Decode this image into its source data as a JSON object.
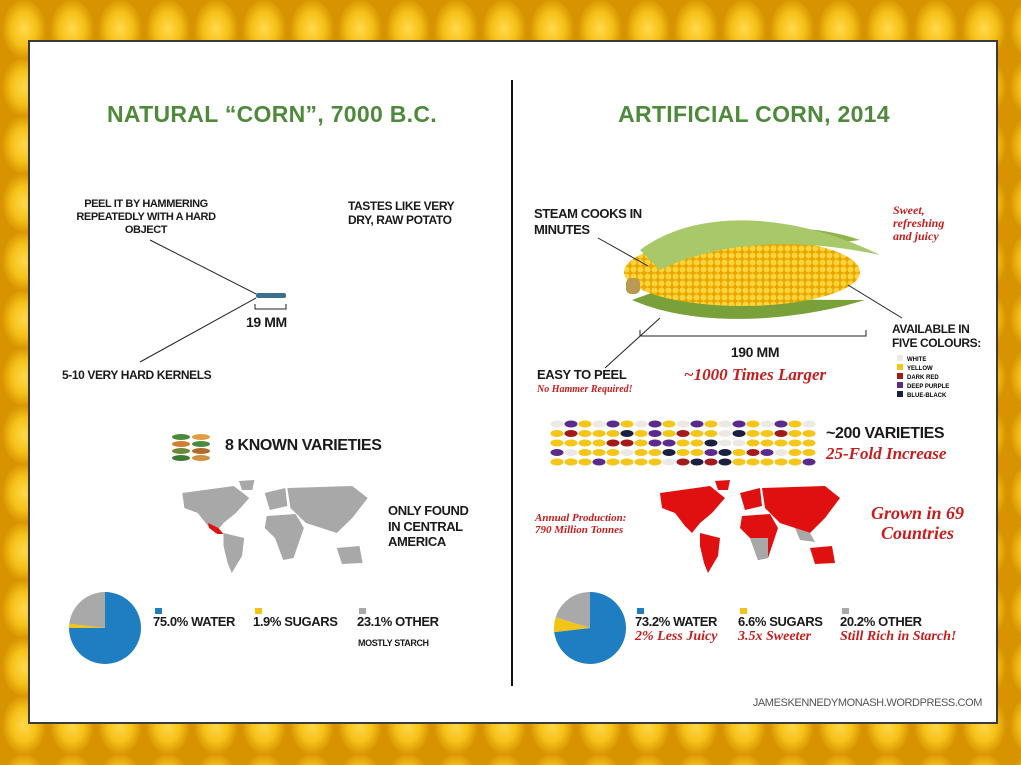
{
  "left": {
    "title": "NATURAL “CORN”, 7000 B.C.",
    "peel": "PEEL IT BY HAMMERING REPEATEDLY WITH A HARD OBJECT",
    "taste": "TASTES LIKE VERY DRY, RAW POTATO",
    "size": "19 MM",
    "kernels": "5-10 VERY HARD KERNELS",
    "varieties": "8 KNOWN VARIETIES",
    "range": "ONLY FOUND IN CENTRAL AMERICA",
    "pie": {
      "values": [
        75.0,
        1.9,
        23.1
      ],
      "colors": [
        "#1f7dc1",
        "#f2c417",
        "#a9a9a9"
      ],
      "labels": [
        "75.0% WATER",
        "1.9% SUGARS",
        "23.1% OTHER"
      ],
      "note": "MOSTLY STARCH"
    }
  },
  "right": {
    "title": "ARTIFICIAL CORN, 2014",
    "steam": "STEAM COOKS IN MINUTES",
    "sweet": "Sweet, refreshing and juicy",
    "colours_title": "AVAILABLE IN FIVE COLOURS:",
    "colours": {
      "names": [
        "WHITE",
        "YELLOW",
        "DARK RED",
        "DEEP PURPLE",
        "BLUE-BLACK"
      ],
      "colors": [
        "#ece9e4",
        "#f5c518",
        "#a31a1a",
        "#5b2b8c",
        "#1b2040"
      ]
    },
    "size": "190 MM",
    "larger": "~1000 Times Larger",
    "peel": "EASY TO PEEL",
    "peel_note": "No Hammer Required!",
    "varieties": "~200 VARIETIES",
    "increase": "25-Fold Increase",
    "production": "Annual Production: 790 Million Tonnes",
    "grown": "Grown in 69 Countries",
    "pie": {
      "values": [
        73.2,
        6.6,
        20.2
      ],
      "colors": [
        "#1f7dc1",
        "#f2c417",
        "#a9a9a9"
      ],
      "labels": [
        "73.2% WATER",
        "6.6% SUGARS",
        "20.2% OTHER"
      ],
      "notes": [
        "2% Less Juicy",
        "3.5x Sweeter",
        "Still Rich in Starch!"
      ]
    }
  },
  "footer": "JAMESKENNEDYMONASH.WORDPRESS.COM"
}
